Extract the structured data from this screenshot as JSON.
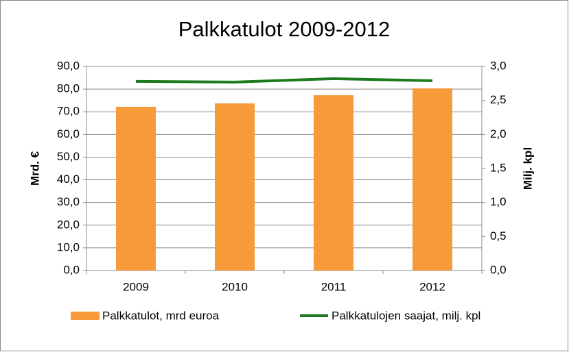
{
  "chart_data": {
    "type": "bar",
    "title": "Palkkatulot 2009-2012",
    "categories": [
      "2009",
      "2010",
      "2011",
      "2012"
    ],
    "y_label": "Mrd. €",
    "y2_label": "Milj. kpl",
    "series": [
      {
        "name": "Palkkatulot, mrd euroa",
        "type": "bar",
        "color": "#f79a3a",
        "values": [
          72.2,
          73.7,
          77.3,
          80.3
        ]
      },
      {
        "name": "Palkkatulojen saajat, milj. kpl",
        "type": "line",
        "axis": "y2",
        "color": "#1e7a1e",
        "values": [
          2.78,
          2.77,
          2.82,
          2.79
        ]
      }
    ],
    "ylim": [
      0,
      90
    ],
    "yticks": [
      {
        "value": 0,
        "label": "0,0"
      },
      {
        "value": 10,
        "label": "10,0"
      },
      {
        "value": 20,
        "label": "20,0"
      },
      {
        "value": 30,
        "label": "30,0"
      },
      {
        "value": 40,
        "label": "40,0"
      },
      {
        "value": 50,
        "label": "50,0"
      },
      {
        "value": 60,
        "label": "60,0"
      },
      {
        "value": 70,
        "label": "70,0"
      },
      {
        "value": 80,
        "label": "80,0"
      },
      {
        "value": 90,
        "label": "90,0"
      }
    ],
    "y2lim": [
      0,
      3
    ],
    "y2ticks": [
      {
        "value": 0,
        "label": "0,0"
      },
      {
        "value": 0.5,
        "label": "0,5"
      },
      {
        "value": 1,
        "label": "1,0"
      },
      {
        "value": 1.5,
        "label": "1,5"
      },
      {
        "value": 2,
        "label": "2,0"
      },
      {
        "value": 2.5,
        "label": "2,5"
      },
      {
        "value": 3,
        "label": "3,0"
      }
    ],
    "grid": true
  }
}
